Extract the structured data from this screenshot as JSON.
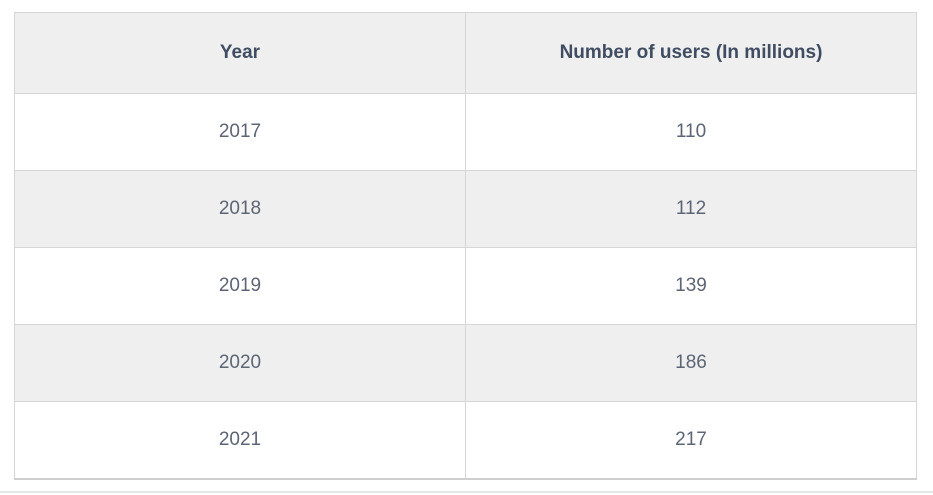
{
  "table": {
    "columns": [
      {
        "label": "Year"
      },
      {
        "label": "Number of users (In millions)"
      }
    ],
    "rows": [
      {
        "year": "2017",
        "users": "110"
      },
      {
        "year": "2018",
        "users": "112"
      },
      {
        "year": "2019",
        "users": "139"
      },
      {
        "year": "2020",
        "users": "186"
      },
      {
        "year": "2021",
        "users": "217"
      }
    ]
  },
  "colors": {
    "header_background": "#efefef",
    "alt_row_background": "#efefef",
    "row_background": "#ffffff",
    "border": "#d6d6d6",
    "header_text": "#3f4c61",
    "body_text": "#5c6575",
    "bottom_separator": "#e3e8ed"
  }
}
